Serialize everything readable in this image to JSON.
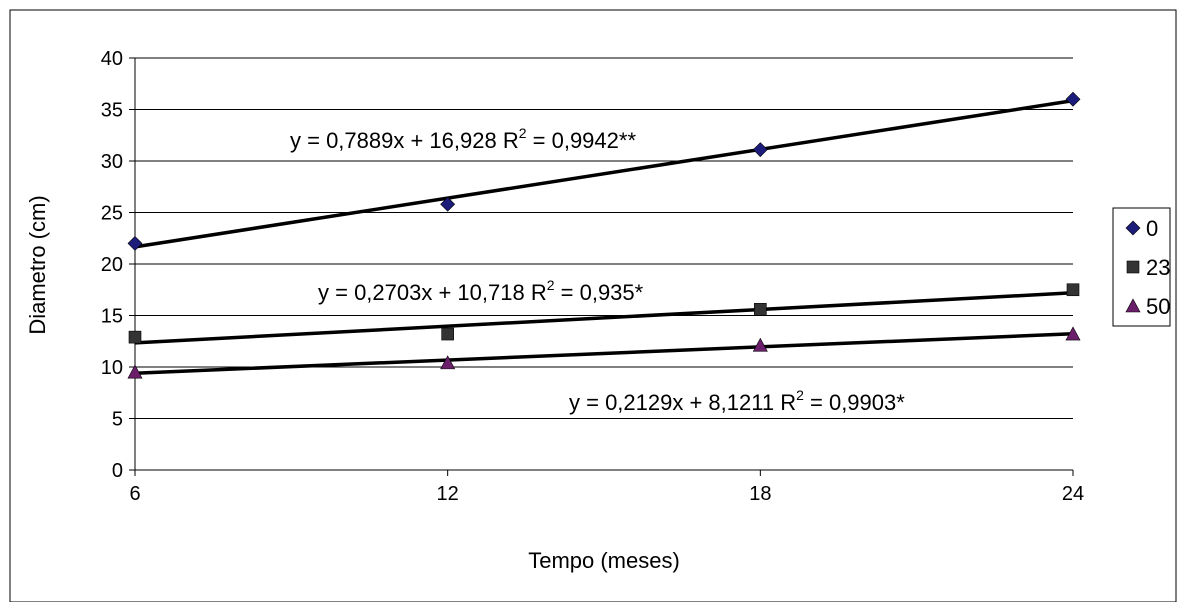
{
  "chart_data": {
    "type": "scatter",
    "title": "",
    "xlabel": "Tempo (meses)",
    "ylabel": "Diametro (cm)",
    "x": [
      6,
      12,
      18,
      24
    ],
    "xlim": [
      6,
      24
    ],
    "ylim": [
      0,
      40
    ],
    "x_ticks": [
      "6",
      "12",
      "18",
      "24"
    ],
    "y_ticks": [
      "0",
      "5",
      "10",
      "15",
      "20",
      "25",
      "30",
      "35",
      "40"
    ],
    "grid": "horizontal",
    "legend_position": "right",
    "series": [
      {
        "name": "0",
        "marker": "diamond",
        "color": "#1c1c7a",
        "values": [
          22,
          25.8,
          31.1,
          36
        ],
        "trend": {
          "slope": 0.7889,
          "intercept": 16.928
        },
        "equation": {
          "text": "y = 0,7889x + 16,928 R",
          "sup": "2",
          "tail": " = 0,9942**"
        }
      },
      {
        "name": "23",
        "marker": "square",
        "color": "#333333",
        "values": [
          12.9,
          13.2,
          15.6,
          17.5
        ],
        "trend": {
          "slope": 0.2703,
          "intercept": 10.718
        },
        "equation": {
          "text": "y = 0,2703x + 10,718 R",
          "sup": "2",
          "tail": " = 0,935*"
        }
      },
      {
        "name": "50",
        "marker": "triangle",
        "color": "#6b1f6b",
        "values": [
          9.5,
          10.4,
          12.1,
          13.2
        ],
        "trend": {
          "slope": 0.2129,
          "intercept": 8.1211
        },
        "equation": {
          "text": "y = 0,2129x + 8,1211 R",
          "sup": "2",
          "tail": " = 0,9903*"
        }
      }
    ]
  }
}
